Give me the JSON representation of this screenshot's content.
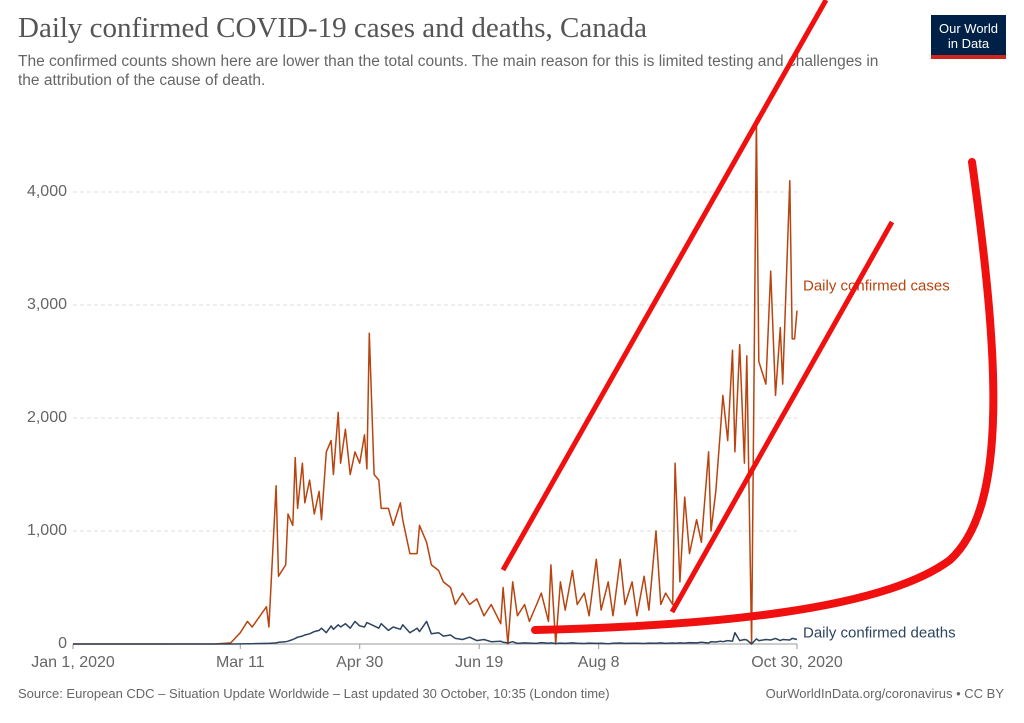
{
  "chart_data": {
    "type": "line",
    "title": "Daily confirmed COVID-19 cases and deaths, Canada",
    "subtitle": "The confirmed counts shown here are lower than the total counts. The main reason for this is limited testing and challenges in the attribution of the cause of death.",
    "logo": [
      "Our World",
      "in Data"
    ],
    "source": "Source: European CDC – Situation Update Worldwide – Last updated 30 October, 10:35 (London time)",
    "credit": "OurWorldInData.org/coronavirus • CC BY",
    "x": [
      0,
      30,
      60,
      66,
      70,
      73,
      75,
      81,
      82,
      85,
      86,
      89,
      90,
      92,
      93,
      94,
      96,
      97,
      99,
      101,
      103,
      104,
      106,
      108,
      109,
      111,
      112,
      114,
      116,
      118,
      120,
      122,
      123,
      124,
      126,
      128,
      129,
      132,
      134,
      137,
      138,
      141,
      144,
      145,
      148,
      150,
      153,
      155,
      158,
      160,
      163,
      166,
      169,
      172,
      175,
      179,
      180,
      182,
      184,
      186,
      189,
      191,
      194,
      196,
      199,
      200,
      202,
      204,
      206,
      209,
      211,
      214,
      216,
      219,
      221,
      224,
      226,
      229,
      231,
      234,
      236,
      239,
      241,
      244,
      246,
      248,
      251,
      252,
      254,
      256,
      258,
      261,
      263,
      266,
      267,
      269,
      271,
      272,
      274,
      276,
      277,
      279,
      281,
      282,
      284,
      286,
      287,
      290,
      292,
      294,
      296,
      297,
      300,
      301,
      302,
      303
    ],
    "series": [
      {
        "name": "Daily confirmed cases",
        "color": "#b8440f",
        "values": [
          0,
          0,
          1,
          10,
          100,
          200,
          150,
          330,
          150,
          1400,
          600,
          700,
          1150,
          1050,
          1650,
          1200,
          1600,
          1250,
          1450,
          1150,
          1350,
          1100,
          1700,
          1800,
          1500,
          2050,
          1600,
          1900,
          1500,
          1700,
          1600,
          1850,
          1550,
          2750,
          1500,
          1450,
          1200,
          1200,
          1050,
          1250,
          1100,
          800,
          800,
          1050,
          900,
          700,
          650,
          550,
          500,
          350,
          450,
          350,
          400,
          250,
          350,
          180,
          500,
          0,
          550,
          250,
          350,
          200,
          350,
          450,
          200,
          700,
          0,
          550,
          300,
          650,
          350,
          450,
          250,
          750,
          300,
          550,
          250,
          750,
          350,
          550,
          250,
          600,
          300,
          1000,
          350,
          450,
          350,
          1600,
          550,
          1300,
          800,
          1100,
          900,
          1700,
          1000,
          1350,
          1900,
          2200,
          1800,
          2600,
          1700,
          2650,
          1600,
          2550,
          0,
          4650,
          2500,
          2300,
          3300,
          2200,
          2800,
          2300,
          4100,
          2700,
          2700,
          2950
        ]
      },
      {
        "name": "Daily confirmed deaths",
        "color": "#2c4460",
        "values": [
          0,
          0,
          0,
          0,
          1,
          2,
          3,
          5,
          5,
          10,
          15,
          20,
          25,
          40,
          50,
          60,
          70,
          80,
          90,
          110,
          120,
          140,
          100,
          160,
          130,
          170,
          150,
          180,
          140,
          200,
          160,
          150,
          190,
          180,
          160,
          140,
          180,
          120,
          150,
          130,
          170,
          100,
          140,
          110,
          200,
          90,
          100,
          70,
          80,
          50,
          40,
          60,
          30,
          40,
          20,
          25,
          15,
          10,
          20,
          5,
          10,
          8,
          5,
          12,
          6,
          10,
          4,
          8,
          5,
          10,
          6,
          4,
          8,
          5,
          7,
          3,
          6,
          9,
          5,
          7,
          6,
          4,
          8,
          6,
          10,
          5,
          9,
          7,
          10,
          8,
          12,
          10,
          15,
          9,
          20,
          18,
          25,
          20,
          30,
          25,
          100,
          30,
          40,
          35,
          0,
          45,
          30,
          40,
          35,
          50,
          30,
          40,
          35,
          50,
          45,
          40
        ]
      }
    ],
    "xlim": [
      0,
      303
    ],
    "xticks": [
      {
        "value": 0,
        "label": "Jan 1, 2020"
      },
      {
        "value": 70,
        "label": "Mar 11"
      },
      {
        "value": 120,
        "label": "Apr 30"
      },
      {
        "value": 170,
        "label": "Jun 19"
      },
      {
        "value": 220,
        "label": "Aug 8"
      },
      {
        "value": 303,
        "label": "Oct 30, 2020"
      }
    ],
    "ylim": [
      0,
      4000
    ],
    "yticks": [
      0,
      {
        "value": 1000,
        "label": "1,000"
      },
      {
        "value": 2000,
        "label": "2,000"
      },
      {
        "value": 3000,
        "label": "3,000"
      },
      {
        "value": 4000,
        "label": "4,000"
      }
    ],
    "grid": true
  }
}
